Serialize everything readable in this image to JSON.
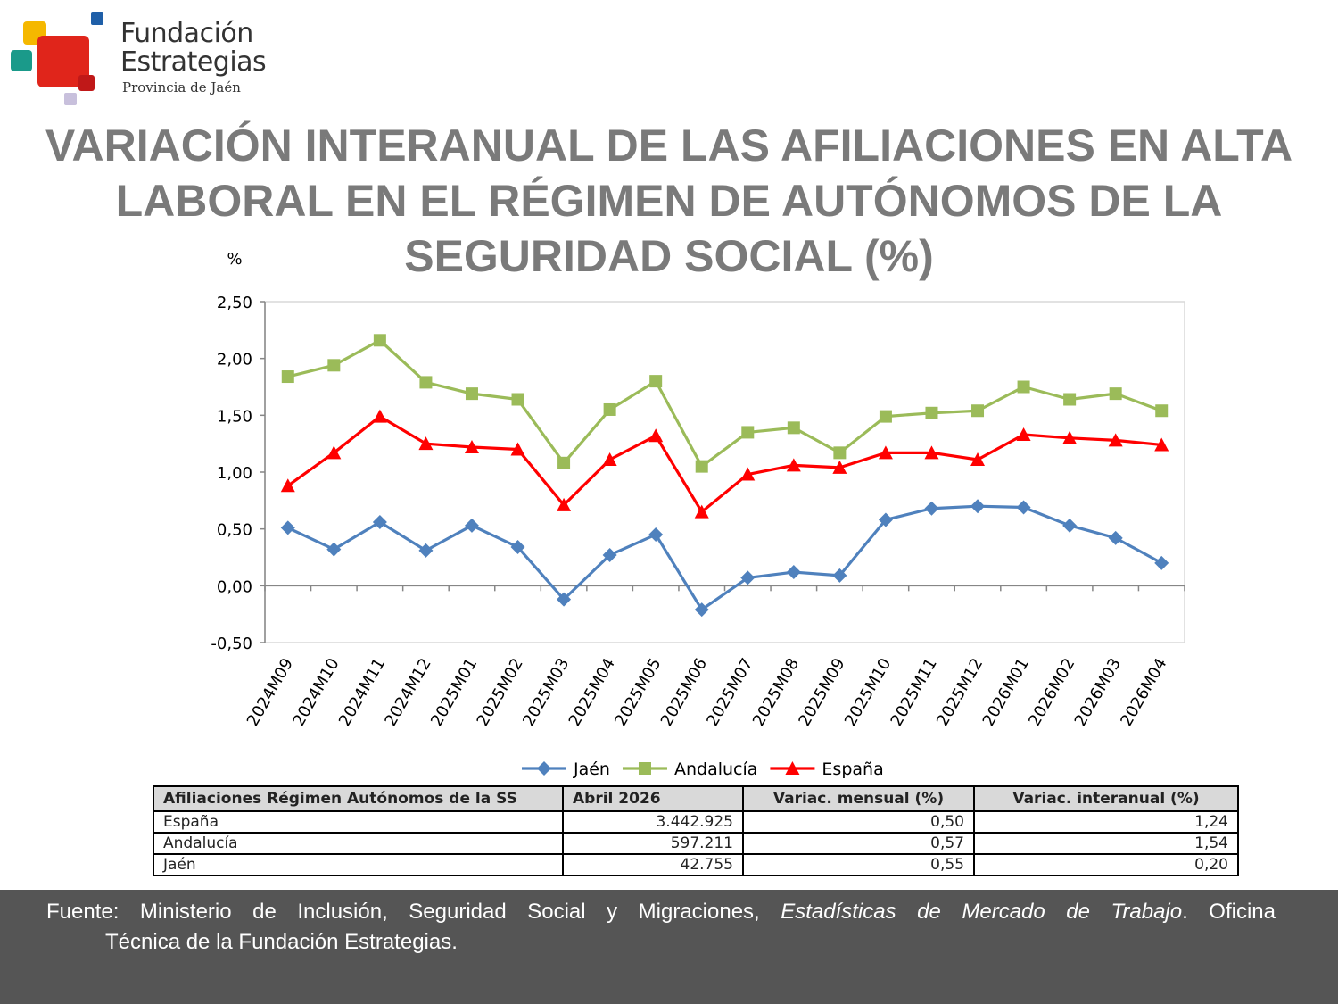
{
  "logo": {
    "name_line1": "Fundación",
    "name_line2": "Estrategias",
    "subtitle": "Provincia de Jaén"
  },
  "title": "VARIACIÓN INTERANUAL DE LAS AFILIACIONES EN ALTA LABORAL EN EL RÉGIMEN DE AUTÓNOMOS DE LA SEGURIDAD SOCIAL (%)",
  "chart_data": {
    "type": "line",
    "title": "VARIACIÓN INTERANUAL DE LAS AFILIACIONES EN ALTA LABORAL EN EL RÉGIMEN DE AUTÓNOMOS DE LA SEGURIDAD SOCIAL (%)",
    "ylabel": "%",
    "xlabel": "",
    "ylim": [
      -0.5,
      2.5
    ],
    "ytick_step": 0.5,
    "yticks": [
      "-0,50",
      "0,00",
      "0,50",
      "1,00",
      "1,50",
      "2,00",
      "2,50"
    ],
    "grid": false,
    "legend_position": "bottom",
    "categories": [
      "2024M09",
      "2024M10",
      "2024M11",
      "2024M12",
      "2025M01",
      "2025M02",
      "2025M03",
      "2025M04",
      "2025M05",
      "2025M06",
      "2025M07",
      "2025M08",
      "2025M09",
      "2025M10",
      "2025M11",
      "2025M12",
      "2026M01",
      "2026M02",
      "2026M03",
      "2026M04"
    ],
    "series": [
      {
        "name": "Jaén",
        "color": "#4f81bd",
        "marker": "diamond",
        "values": [
          0.51,
          0.32,
          0.56,
          0.31,
          0.53,
          0.34,
          -0.12,
          0.27,
          0.45,
          -0.21,
          0.07,
          0.12,
          0.09,
          0.58,
          0.68,
          0.7,
          0.69,
          0.53,
          0.42,
          0.2
        ]
      },
      {
        "name": "Andalucía",
        "color": "#9bbb59",
        "marker": "square",
        "values": [
          1.84,
          1.94,
          2.16,
          1.79,
          1.69,
          1.64,
          1.08,
          1.55,
          1.8,
          1.05,
          1.35,
          1.39,
          1.17,
          1.49,
          1.52,
          1.54,
          1.75,
          1.64,
          1.69,
          1.54
        ]
      },
      {
        "name": "España",
        "color": "#ff0000",
        "marker": "triangle",
        "values": [
          0.88,
          1.17,
          1.49,
          1.25,
          1.22,
          1.2,
          0.71,
          1.11,
          1.32,
          0.65,
          0.98,
          1.06,
          1.04,
          1.17,
          1.17,
          1.11,
          1.33,
          1.3,
          1.28,
          1.24
        ]
      }
    ]
  },
  "table": {
    "headers": [
      "Afiliaciones Régimen Autónomos de la SS",
      "Abril 2026",
      "Variac. mensual (%)",
      "Variac. interanual (%)"
    ],
    "rows": [
      {
        "label": "España",
        "value": "3.442.925",
        "monthly": "0,50",
        "yearly": "1,24"
      },
      {
        "label": "Andalucía",
        "value": "597.211",
        "monthly": "0,57",
        "yearly": "1,54"
      },
      {
        "label": "Jaén",
        "value": "42.755",
        "monthly": "0,55",
        "yearly": "0,20"
      }
    ]
  },
  "footer": {
    "prefix": "Fuente: Ministerio de Inclusión, Seguridad Social y Migraciones, ",
    "italic": "Estadísticas de Mercado de Trabajo",
    "suffix": ". Oficina",
    "line2": "Técnica de la Fundación Estrategias."
  }
}
